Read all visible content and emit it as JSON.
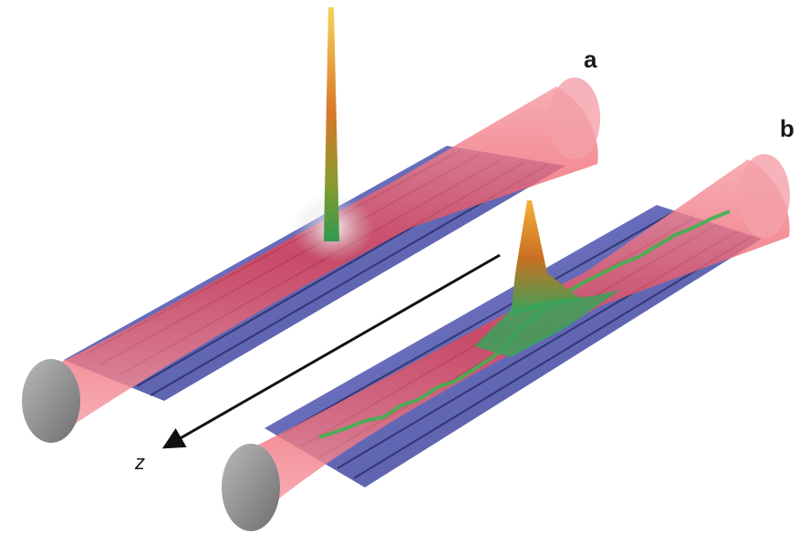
{
  "figure": {
    "panels": [
      {
        "label": "a",
        "description_id": "single-localized-peak"
      },
      {
        "label": "b",
        "description_id": "distributed-peaks"
      }
    ],
    "axis": {
      "label": "z"
    },
    "colors": {
      "beam": "#f0606e",
      "beam_edge": "#d94c5c",
      "surface": "#5a5fb8",
      "surface_dark": "#23285e",
      "peak_top": "#f5a623",
      "peak_mid": "#c7681f",
      "peak_low": "#3aa35a",
      "end_cap": "#8c8c8c"
    }
  }
}
